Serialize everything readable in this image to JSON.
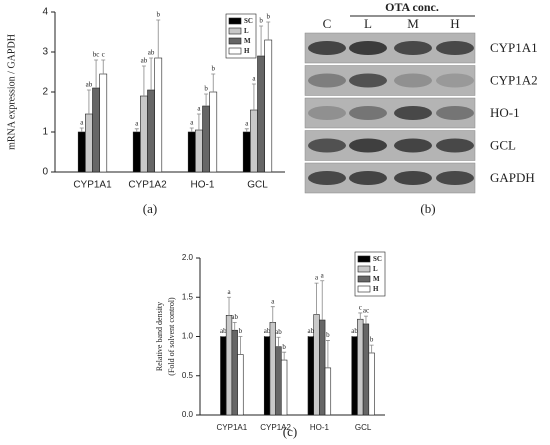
{
  "chart_data": [
    {
      "type": "bar",
      "panel_label": "(a)",
      "ylabel": [
        "mRNA expression / GAPDH"
      ],
      "categories": [
        "CYP1A1",
        "CYP1A2",
        "HO-1",
        "GCL"
      ],
      "series": [
        {
          "name": "SC",
          "color": "#000000",
          "values": [
            1.0,
            1.0,
            1.0,
            1.0
          ],
          "errors": [
            0.1,
            0.08,
            0.1,
            0.08
          ],
          "letters": [
            "a",
            "a",
            "a",
            "a"
          ]
        },
        {
          "name": "L",
          "color": "#c8c8c8",
          "values": [
            1.45,
            1.9,
            1.05,
            1.55
          ],
          "errors": [
            0.6,
            0.75,
            0.4,
            0.65
          ],
          "letters": [
            "ab",
            "ab",
            "a",
            "a"
          ]
        },
        {
          "name": "M",
          "color": "#666666",
          "values": [
            2.1,
            2.05,
            1.65,
            2.9
          ],
          "errors": [
            0.7,
            0.8,
            0.3,
            0.75
          ],
          "letters": [
            "bc",
            "ab",
            "b",
            "b"
          ]
        },
        {
          "name": "H",
          "color": "#ffffff",
          "values": [
            2.45,
            2.85,
            2.0,
            3.3
          ],
          "errors": [
            0.35,
            0.95,
            0.45,
            0.45
          ],
          "letters": [
            "c",
            "b",
            "b",
            "b"
          ]
        }
      ],
      "ylim": [
        0,
        4
      ],
      "yticks": [
        0,
        1,
        2,
        3,
        4
      ],
      "legend": "upper right"
    },
    {
      "type": "bar",
      "panel_label": "(c)",
      "ylabel": [
        "Relative band density",
        "(Fold of solvent control)"
      ],
      "categories": [
        "CYP1A1",
        "CYP1A2",
        "HO-1",
        "GCL"
      ],
      "series": [
        {
          "name": "SC",
          "color": "#000000",
          "values": [
            1.0,
            1.0,
            1.0,
            1.0
          ],
          "errors": [
            0.0,
            0.0,
            0.0,
            0.0
          ],
          "letters": [
            "ab",
            "ab",
            "ab",
            "ab"
          ]
        },
        {
          "name": "L",
          "color": "#c8c8c8",
          "values": [
            1.27,
            1.18,
            1.28,
            1.22
          ],
          "errors": [
            0.23,
            0.2,
            0.4,
            0.08
          ],
          "letters": [
            "a",
            "a",
            "a",
            "c"
          ]
        },
        {
          "name": "M",
          "color": "#666666",
          "values": [
            1.08,
            0.87,
            1.21,
            1.16
          ],
          "errors": [
            0.1,
            0.12,
            0.5,
            0.1
          ],
          "letters": [
            "ab",
            "ab",
            "a",
            "ac"
          ]
        },
        {
          "name": "H",
          "color": "#ffffff",
          "values": [
            0.77,
            0.7,
            0.6,
            0.79
          ],
          "errors": [
            0.23,
            0.1,
            0.35,
            0.1
          ],
          "letters": [
            "b",
            "b",
            "b",
            "b"
          ]
        }
      ],
      "ylim": [
        0,
        2.0
      ],
      "yticks": [
        {
          "value": 0,
          "label": "0.0"
        },
        {
          "value": 0.5,
          "label": "0.5"
        },
        {
          "value": 1.0,
          "label": "1.0"
        },
        {
          "value": 1.5,
          "label": "1.5"
        },
        {
          "value": 2.0,
          "label": "2.0"
        }
      ],
      "legend": "upper right"
    }
  ],
  "blot": {
    "title": "OTA conc.",
    "lanes": [
      "C",
      "L",
      "M",
      "H"
    ],
    "rows": [
      "CYP1A1",
      "CYP1A2",
      "HO-1",
      "GCL",
      "GAPDH"
    ],
    "panel_label": "(b)"
  }
}
